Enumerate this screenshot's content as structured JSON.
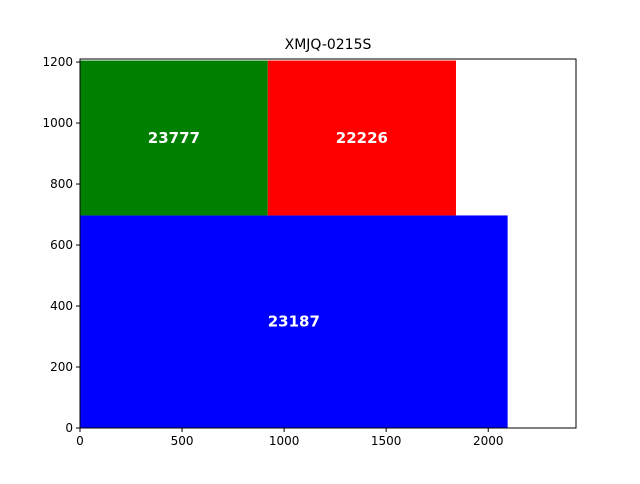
{
  "chart_data": {
    "type": "treemap",
    "title": "XMJQ-0215S",
    "xlabel": "",
    "ylabel": "",
    "xlim": [
      0,
      2430
    ],
    "ylim": [
      0,
      1210
    ],
    "x_ticks": [
      0,
      500,
      1000,
      1500,
      2000
    ],
    "y_ticks": [
      0,
      200,
      400,
      600,
      800,
      1000,
      1200
    ],
    "grid": false,
    "rectangles": [
      {
        "label": "23187",
        "value": 23187,
        "x0": 0,
        "y0": 0,
        "x1": 2095,
        "y1": 697,
        "color": "#0000ff"
      },
      {
        "label": "23777",
        "value": 23777,
        "x0": 0,
        "y0": 697,
        "x1": 920,
        "y1": 1205,
        "color": "#008000"
      },
      {
        "label": "22226",
        "value": 22226,
        "x0": 920,
        "y0": 697,
        "x1": 1842,
        "y1": 1205,
        "color": "#ff0000"
      }
    ]
  }
}
